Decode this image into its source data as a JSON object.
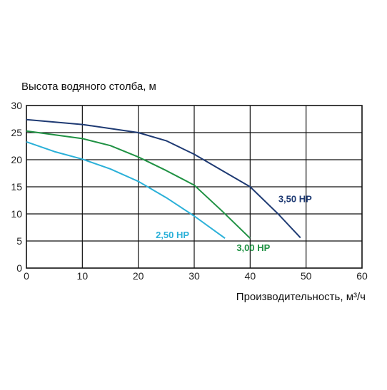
{
  "chart_data": {
    "type": "line",
    "ylabel": "Высота водяного столба, м",
    "xlabel": "Производительность, м³/ч",
    "xlim": [
      0,
      60
    ],
    "ylim": [
      0,
      30
    ],
    "xticks": [
      0,
      10,
      20,
      30,
      40,
      50,
      60
    ],
    "yticks": [
      0,
      5,
      10,
      15,
      20,
      25,
      30
    ],
    "grid": true,
    "series": [
      {
        "name": "3,50 HP",
        "color": "#1e3a73",
        "points": [
          [
            0,
            27.4
          ],
          [
            10,
            26.5
          ],
          [
            20,
            25.0
          ],
          [
            25,
            23.5
          ],
          [
            30,
            21.0
          ],
          [
            35,
            18.0
          ],
          [
            40,
            15.0
          ],
          [
            45,
            10.0
          ],
          [
            49,
            5.6
          ]
        ]
      },
      {
        "name": "3,00 HP",
        "color": "#1f9143",
        "points": [
          [
            0,
            25.3
          ],
          [
            10,
            23.9
          ],
          [
            15,
            22.6
          ],
          [
            20,
            20.5
          ],
          [
            25,
            18.0
          ],
          [
            30,
            15.3
          ],
          [
            35,
            10.5
          ],
          [
            40,
            5.5
          ]
        ]
      },
      {
        "name": "2,50 HP",
        "color": "#2ab0d8",
        "points": [
          [
            0,
            23.3
          ],
          [
            5,
            21.5
          ],
          [
            10,
            20.1
          ],
          [
            15,
            18.3
          ],
          [
            20,
            16.0
          ],
          [
            25,
            13.0
          ],
          [
            30,
            9.6
          ],
          [
            35.5,
            5.5
          ]
        ]
      }
    ]
  }
}
